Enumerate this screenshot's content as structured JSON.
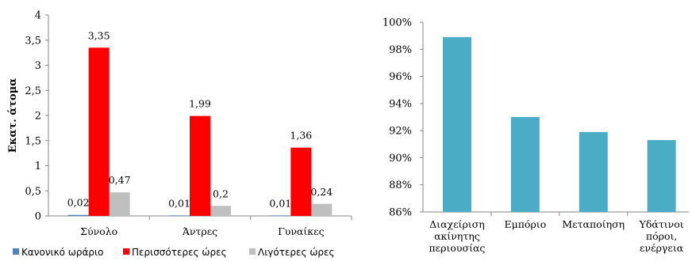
{
  "chart_data": [
    {
      "type": "bar",
      "ylabel": "Εκατ. άτομα",
      "ylim": [
        0,
        4
      ],
      "yticks": [
        "0",
        "0,5",
        "1",
        "1,5",
        "2",
        "2,5",
        "3",
        "3,5",
        "4"
      ],
      "categories": [
        "Σύνολο",
        "Άντρες",
        "Γυναίκες"
      ],
      "series": [
        {
          "name": "Κανονικό ωράριο",
          "color": "#4f81bd",
          "values": [
            0.02,
            0.01,
            0.01
          ],
          "labels": [
            "0,02",
            "0,01",
            "0,01"
          ]
        },
        {
          "name": "Περισσότερες ώρες",
          "color": "#ff0000",
          "values": [
            3.35,
            1.99,
            1.36
          ],
          "labels": [
            "3,35",
            "1,99",
            "1,36"
          ]
        },
        {
          "name": "Λιγότερες ώρες",
          "color": "#bfbfbf",
          "values": [
            0.47,
            0.2,
            0.24
          ],
          "labels": [
            "0,47",
            "0,2",
            "0,24"
          ]
        }
      ],
      "legend_position": "bottom"
    },
    {
      "type": "bar",
      "ylim": [
        86,
        100
      ],
      "yticks": [
        "86%",
        "88%",
        "90%",
        "92%",
        "94%",
        "96%",
        "98%",
        "100%"
      ],
      "categories": [
        [
          "Διαχείριση",
          "ακίνητης",
          "περιουσίας"
        ],
        [
          "Εμπόριο"
        ],
        [
          "Μεταποίηση"
        ],
        [
          "Υδάτινοι",
          "πόροι,",
          "ενέργεια"
        ]
      ],
      "series": [
        {
          "color": "#4bacc6",
          "values": [
            98.9,
            93.0,
            91.9,
            91.3
          ]
        }
      ]
    }
  ]
}
